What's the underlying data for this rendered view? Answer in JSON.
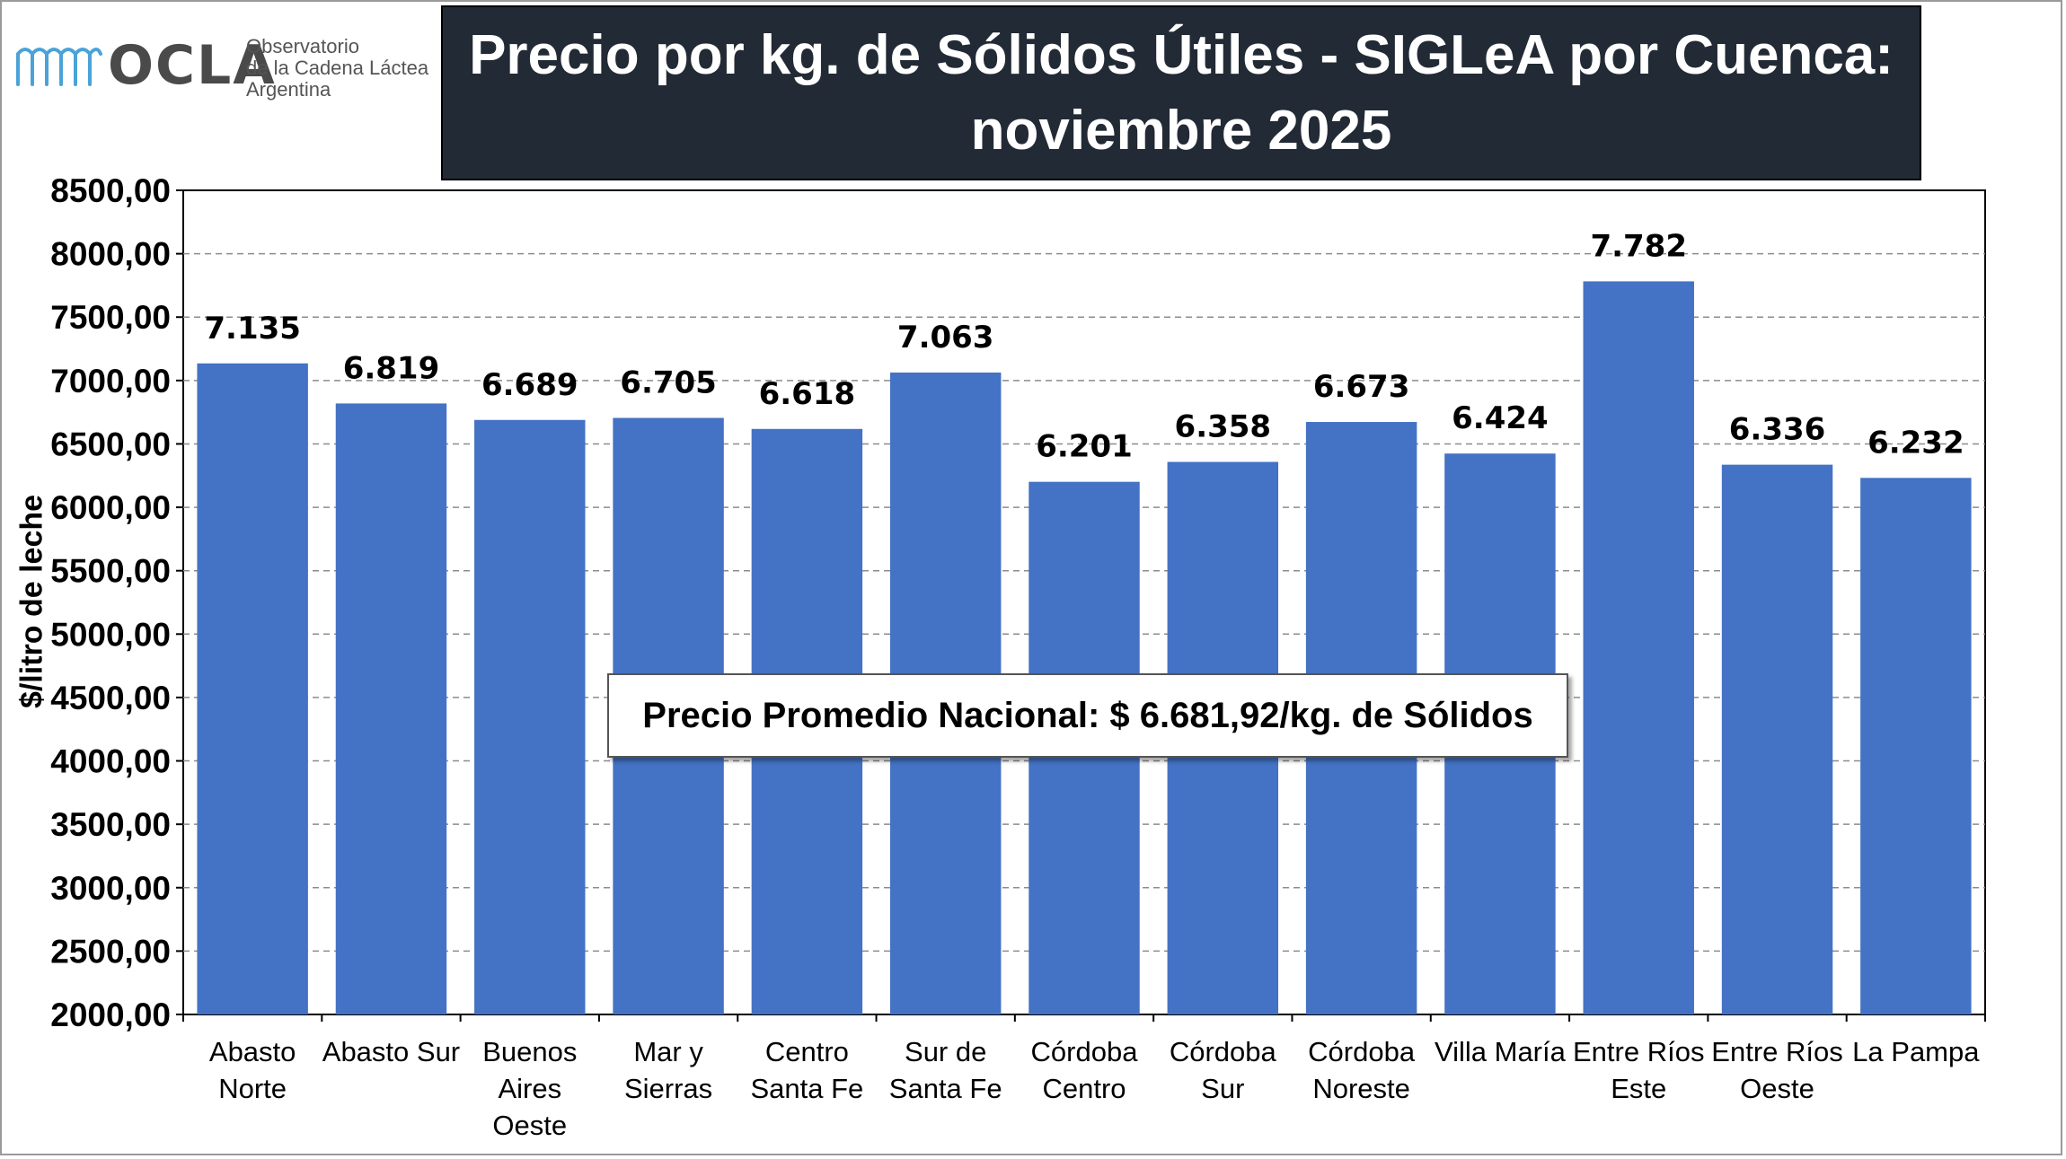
{
  "logo": {
    "wordmark": "OCLA",
    "line1": "Observatorio",
    "line2": "de la Cadena Láctea",
    "line3": "Argentina",
    "color": "#4aa3d8"
  },
  "chart_data": {
    "type": "bar",
    "title": "Precio por kg. de Sólidos Útiles - SIGLeA por Cuenca: noviembre 2025",
    "ylabel": "$/litro de leche",
    "xlabel": "",
    "ylim": [
      2000,
      8500
    ],
    "yticks": [
      "2000,00",
      "2500,00",
      "3000,00",
      "3500,00",
      "4000,00",
      "4500,00",
      "5000,00",
      "5500,00",
      "6000,00",
      "6500,00",
      "7000,00",
      "7500,00",
      "8000,00",
      "8500,00"
    ],
    "grid": true,
    "bar_color": "#4472c4",
    "categories": [
      [
        "Abasto",
        "Norte"
      ],
      [
        "Abasto Sur"
      ],
      [
        "Buenos",
        "Aires",
        "Oeste"
      ],
      [
        "Mar y",
        "Sierras"
      ],
      [
        "Centro",
        "Santa Fe"
      ],
      [
        "Sur de",
        "Santa Fe"
      ],
      [
        "Córdoba",
        "Centro"
      ],
      [
        "Córdoba",
        "Sur"
      ],
      [
        "Córdoba",
        "Noreste"
      ],
      [
        "Villa María"
      ],
      [
        "Entre Ríos",
        "Este"
      ],
      [
        "Entre Ríos",
        "Oeste"
      ],
      [
        "La Pampa"
      ]
    ],
    "values": [
      7135,
      6819,
      6689,
      6705,
      6618,
      7063,
      6201,
      6358,
      6673,
      6424,
      7782,
      6336,
      6232
    ],
    "value_labels": [
      "7.135",
      "6.819",
      "6.689",
      "6.705",
      "6.618",
      "7.063",
      "6.201",
      "6.358",
      "6.673",
      "6.424",
      "7.782",
      "6.336",
      "6.232"
    ],
    "annotation": "Precio Promedio Nacional: $ 6.681,92/kg.  de Sólidos"
  }
}
